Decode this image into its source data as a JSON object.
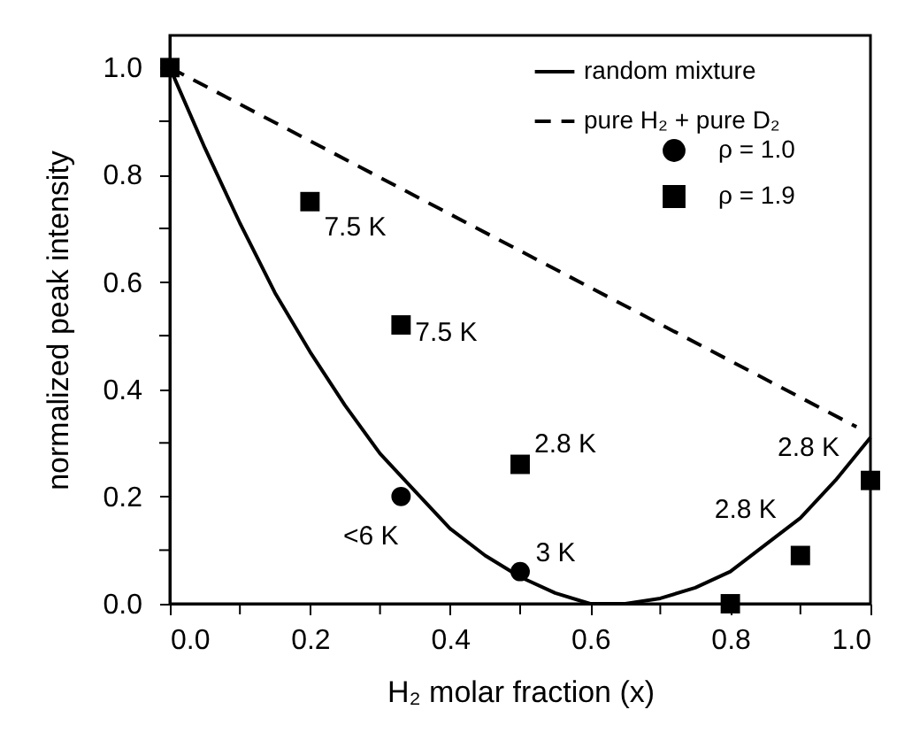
{
  "chart_data": {
    "type": "scatter",
    "xlabel": "H₂ molar fraction (x)",
    "ylabel": "normalized peak intensity",
    "xlim": [
      0,
      1
    ],
    "ylim": [
      0,
      1.06
    ],
    "xticks": [
      {
        "value": 0,
        "label": "0.0"
      },
      {
        "value": 0.1,
        "label": null
      },
      {
        "value": 0.2,
        "label": "0.2"
      },
      {
        "value": 0.3,
        "label": null
      },
      {
        "value": 0.4,
        "label": "0.4"
      },
      {
        "value": 0.5,
        "label": null
      },
      {
        "value": 0.6,
        "label": "0.6"
      },
      {
        "value": 0.7,
        "label": null
      },
      {
        "value": 0.8,
        "label": "0.8"
      },
      {
        "value": 0.9,
        "label": null
      },
      {
        "value": 1,
        "label": "1.0"
      }
    ],
    "yticks": [
      {
        "value": 0,
        "label": "0.0"
      },
      {
        "value": 0.1,
        "label": null
      },
      {
        "value": 0.2,
        "label": "0.2"
      },
      {
        "value": 0.3,
        "label": null
      },
      {
        "value": 0.4,
        "label": "0.4"
      },
      {
        "value": 0.5,
        "label": null
      },
      {
        "value": 0.6,
        "label": "0.6"
      },
      {
        "value": 0.7,
        "label": null
      },
      {
        "value": 0.8,
        "label": "0.8"
      },
      {
        "value": 0.9,
        "label": null
      },
      {
        "value": 1,
        "label": "1.0"
      }
    ],
    "grid": false,
    "legend": "top right",
    "series": [
      {
        "name": "random mixture",
        "type": "line",
        "line_style": "solid",
        "color": "#000000",
        "x": [
          0,
          0.05,
          0.1,
          0.15,
          0.2,
          0.25,
          0.3,
          0.35,
          0.4,
          0.45,
          0.5,
          0.55,
          0.6,
          0.65,
          0.7,
          0.75,
          0.8,
          0.85,
          0.9,
          0.95,
          1
        ],
        "values": [
          1.0,
          0.85,
          0.71,
          0.58,
          0.47,
          0.37,
          0.28,
          0.21,
          0.14,
          0.09,
          0.05,
          0.02,
          0.0,
          0.0,
          0.01,
          0.03,
          0.06,
          0.11,
          0.16,
          0.23,
          0.31
        ]
      },
      {
        "name": "pure H₂ + pure D₂",
        "type": "line",
        "line_style": "dashed",
        "color": "#000000",
        "x": [
          0,
          0.98
        ],
        "values": [
          1.0,
          0.33
        ]
      },
      {
        "name": "ρ = 1.0",
        "type": "scatter",
        "marker": "circle",
        "color": "#000000",
        "x": [
          0.33,
          0.5
        ],
        "values": [
          0.2,
          0.06
        ]
      },
      {
        "name": "ρ = 1.9",
        "type": "scatter",
        "marker": "square",
        "color": "#000000",
        "x": [
          0,
          0.2,
          0.33,
          0.5,
          0.8,
          0.9,
          1.0
        ],
        "values": [
          1.0,
          0.75,
          0.52,
          0.26,
          0.0,
          0.09,
          0.23
        ]
      }
    ],
    "annotations": [
      {
        "text": "7.5 K",
        "x": 0.2,
        "y": 0.75
      },
      {
        "text": "7.5 K",
        "x": 0.33,
        "y": 0.52
      },
      {
        "text": "2.8 K",
        "x": 0.5,
        "y": 0.26
      },
      {
        "text": "<6 K",
        "x": 0.33,
        "y": 0.2
      },
      {
        "text": "3 K",
        "x": 0.5,
        "y": 0.06
      },
      {
        "text": "2.8 K",
        "x": 0.9,
        "y": 0.09
      },
      {
        "text": "2.8 K",
        "x": 1.0,
        "y": 0.23
      }
    ]
  }
}
